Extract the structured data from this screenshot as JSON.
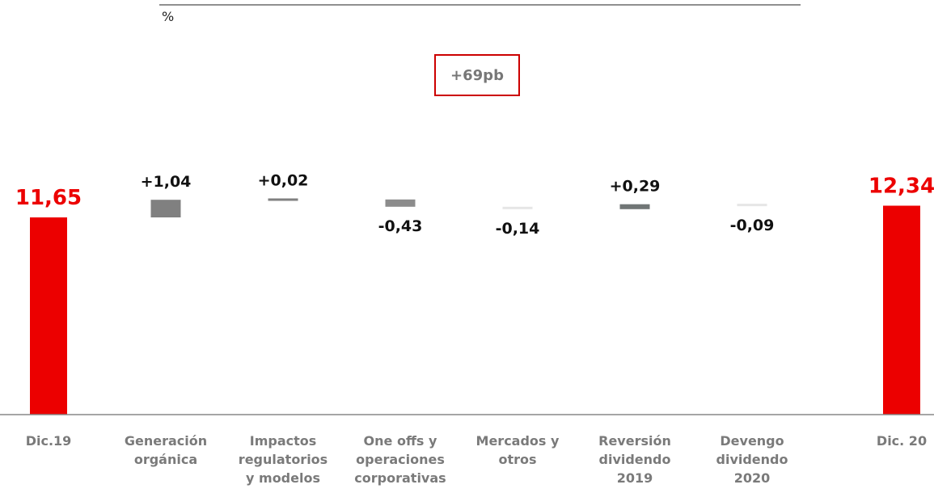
{
  "chart_data": {
    "type": "bar",
    "subtype": "waterfall",
    "unit_label": "%",
    "callout": "+69pb",
    "categories": [
      [
        "Dic.19"
      ],
      [
        "Generación",
        "orgánica"
      ],
      [
        "Impactos",
        "regulatorios",
        "y modelos"
      ],
      [
        "One offs y",
        "operaciones",
        "corporativas"
      ],
      [
        "Mercados y",
        "otros"
      ],
      [
        "Reversión",
        "dividendo",
        "2019"
      ],
      [
        "Devengo",
        "dividendo",
        "2020"
      ],
      [
        "Dic. 20"
      ]
    ],
    "values": [
      11.65,
      1.04,
      0.02,
      -0.43,
      -0.14,
      0.29,
      -0.09,
      12.34
    ],
    "labels": [
      "11,65",
      "+1,04",
      "+0,02",
      "-0,43",
      "-0,14",
      "+0,29",
      "-0,09",
      "12,34"
    ],
    "kinds": [
      "total",
      "delta",
      "delta",
      "delta",
      "delta",
      "delta",
      "delta",
      "total"
    ],
    "colors": {
      "total": "#ec0000",
      "total_label": "#ec0000",
      "delta_dark": "#808080",
      "delta_mid": "#8c8c8c",
      "delta_light": "#e6e6e6",
      "delta_slate": "#717676",
      "axis": "#888888",
      "callout_border": "#cc0000",
      "callout_text": "#777777"
    },
    "bar_colors": [
      "#ec0000",
      "#808080",
      "#808080",
      "#8c8c8c",
      "#e6e6e6",
      "#717676",
      "#e6e6e6",
      "#ec0000"
    ]
  }
}
